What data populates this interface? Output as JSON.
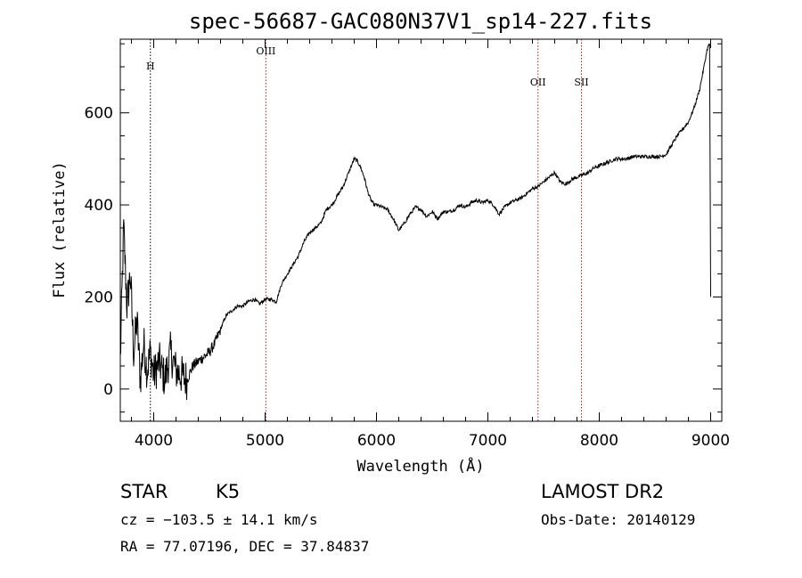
{
  "chart_data": {
    "type": "line",
    "title": "spec-56687-GAC080N37V1_sp14-227.fits",
    "xlabel": "Wavelength (Å)",
    "ylabel": "Flux (relative)",
    "xlim": [
      3700,
      9100
    ],
    "ylim": [
      -70,
      760
    ],
    "x_ticks": [
      4000,
      5000,
      6000,
      7000,
      8000,
      9000
    ],
    "y_ticks": [
      0,
      200,
      400,
      600
    ],
    "x_tick_labels": [
      "4000",
      "5000",
      "6000",
      "7000",
      "8000",
      "9000"
    ],
    "y_tick_labels": [
      "0",
      "200",
      "400",
      "600"
    ],
    "grid": false,
    "series": [
      {
        "x": [
          3700,
          3730,
          3760,
          3790,
          3820,
          3850,
          3880,
          3910,
          3940,
          3970,
          4000,
          4050,
          4100,
          4150,
          4200,
          4250,
          4300,
          4350,
          4400,
          4450,
          4500,
          4550,
          4600,
          4650,
          4700,
          4750,
          4800,
          4850,
          4900,
          4950,
          5000,
          5050,
          5100,
          5150,
          5200,
          5250,
          5300,
          5350,
          5400,
          5450,
          5500,
          5550,
          5600,
          5650,
          5700,
          5750,
          5800,
          5830,
          5860,
          5890,
          5920,
          5950,
          5980,
          6000,
          6050,
          6100,
          6150,
          6200,
          6250,
          6300,
          6350,
          6400,
          6450,
          6500,
          6550,
          6600,
          6650,
          6700,
          6750,
          6800,
          6850,
          6900,
          6950,
          7000,
          7050,
          7100,
          7150,
          7200,
          7250,
          7300,
          7350,
          7400,
          7450,
          7500,
          7550,
          7600,
          7650,
          7700,
          7750,
          7800,
          7850,
          7900,
          7950,
          8000,
          8050,
          8100,
          8150,
          8200,
          8250,
          8300,
          8350,
          8400,
          8450,
          8500,
          8550,
          8600,
          8650,
          8700,
          8750,
          8800,
          8850,
          8900,
          8940,
          8970,
          8990,
          9000
        ],
        "y": [
          60,
          350,
          180,
          250,
          80,
          150,
          20,
          100,
          40,
          80,
          30,
          60,
          20,
          80,
          40,
          30,
          20,
          50,
          60,
          70,
          80,
          100,
          130,
          160,
          170,
          180,
          180,
          190,
          195,
          185,
          195,
          195,
          190,
          230,
          250,
          270,
          290,
          320,
          340,
          350,
          360,
          390,
          400,
          420,
          440,
          470,
          500,
          495,
          480,
          460,
          430,
          410,
          400,
          400,
          395,
          390,
          370,
          345,
          360,
          380,
          395,
          390,
          375,
          385,
          370,
          385,
          385,
          390,
          400,
          395,
          405,
          410,
          405,
          410,
          400,
          380,
          395,
          405,
          410,
          415,
          425,
          435,
          440,
          450,
          460,
          470,
          450,
          445,
          455,
          460,
          465,
          470,
          480,
          485,
          490,
          495,
          500,
          500,
          500,
          505,
          505,
          505,
          505,
          505,
          505,
          510,
          530,
          550,
          565,
          580,
          610,
          650,
          700,
          740,
          750,
          200
        ]
      }
    ],
    "lines": [
      {
        "x": 3970,
        "label": "H",
        "color": "#000000"
      },
      {
        "x": 5007,
        "label": "OIII",
        "color": "#b02020"
      },
      {
        "x": 7450,
        "label": "OII",
        "color": "#b02020"
      },
      {
        "x": 7840,
        "label": "SII",
        "color": "#b02020"
      }
    ]
  },
  "info": {
    "object_class": "STAR",
    "subclass": "K5",
    "survey": "LAMOST DR2",
    "redshift": "cz = −103.5 ± 14.1 km/s",
    "obs_date": "Obs-Date: 20140129",
    "coords": "RA =  77.07196, DEC =  37.84837"
  }
}
